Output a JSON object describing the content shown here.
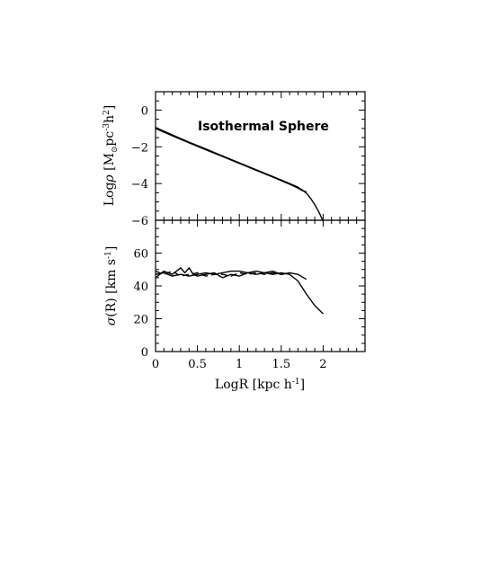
{
  "chart_data": [
    {
      "type": "line",
      "panel": "top",
      "annotation": "Isothermal Sphere",
      "ylabel_parts": {
        "pre": "Log",
        "rho": "ρ",
        "bracket_open": " [M",
        "sun": "⊙",
        "pc": "pc",
        "pc_exp": "-3",
        "h": "h",
        "h_exp": "2",
        "bracket_close": "]"
      },
      "xlim": [
        0,
        2.5
      ],
      "ylim": [
        -6,
        1
      ],
      "yticks": [
        0,
        -2,
        -4,
        -6
      ],
      "ytick_labels": [
        "0",
        "−2",
        "−4",
        "−6"
      ],
      "series": [
        {
          "x": [
            0,
            0.2,
            0.4,
            0.6,
            0.8,
            1.0,
            1.2,
            1.4,
            1.6,
            1.7,
            1.75,
            1.8,
            1.85,
            1.9,
            1.95,
            2.0
          ],
          "y": [
            -0.95,
            -1.35,
            -1.75,
            -2.12,
            -2.5,
            -2.87,
            -3.25,
            -3.62,
            -4.0,
            -4.2,
            -4.35,
            -4.52,
            -4.8,
            -5.15,
            -5.55,
            -6.05
          ]
        },
        {
          "x": [
            0,
            0.2,
            0.4,
            0.6,
            0.8,
            1.0,
            1.2,
            1.4,
            1.6,
            1.7,
            1.75,
            1.8
          ],
          "y": [
            -1.0,
            -1.4,
            -1.78,
            -2.16,
            -2.53,
            -2.9,
            -3.28,
            -3.65,
            -4.03,
            -4.25,
            -4.38,
            -4.45
          ]
        }
      ]
    },
    {
      "type": "line",
      "panel": "bottom",
      "ylabel_parts": {
        "sigma": "σ",
        "r": "(R) [km s",
        "exp": "-1",
        "close": "]"
      },
      "xlabel_parts": {
        "pre": "LogR [kpc h",
        "exp": "-1",
        "close": "]"
      },
      "xlim": [
        0,
        2.5
      ],
      "ylim": [
        0,
        80
      ],
      "xticks": [
        0,
        0.5,
        1,
        1.5,
        2
      ],
      "xtick_labels": [
        "0",
        "0.5",
        "1",
        "1.5",
        "2"
      ],
      "yticks": [
        0,
        20,
        40,
        60
      ],
      "ytick_labels": [
        "0",
        "20",
        "40",
        "60"
      ],
      "series": [
        {
          "x": [
            0,
            0.1,
            0.2,
            0.3,
            0.4,
            0.5,
            0.6,
            0.7,
            0.8,
            0.9,
            1.0,
            1.1,
            1.2,
            1.3,
            1.4,
            1.5,
            1.6,
            1.7,
            1.8,
            1.9,
            2.0
          ],
          "y": [
            47,
            48,
            46,
            47,
            46,
            47,
            48,
            47,
            48,
            49,
            49,
            48,
            49,
            48,
            47,
            48,
            47,
            43,
            35,
            28,
            23
          ]
        },
        {
          "x": [
            0,
            0.1,
            0.2,
            0.3,
            0.35,
            0.4,
            0.45,
            0.5,
            0.6,
            0.7,
            0.8,
            0.9,
            1.0,
            1.1,
            1.2,
            1.3,
            1.4,
            1.5,
            1.6,
            1.7,
            1.8
          ],
          "y": [
            45,
            49,
            47,
            51,
            48,
            51,
            47,
            46,
            47,
            48,
            45,
            47,
            46,
            48,
            47,
            48,
            49,
            47,
            48,
            47,
            44
          ]
        },
        {
          "x": [
            0,
            0.1,
            0.2,
            0.3,
            0.4,
            0.5,
            0.6,
            0.7,
            0.8,
            0.9,
            1.0,
            1.1,
            1.2,
            1.3,
            1.4,
            1.5,
            1.6
          ],
          "y": [
            49,
            47,
            49,
            46,
            47,
            48,
            46,
            47,
            47,
            46,
            48,
            47,
            48,
            47,
            48,
            47,
            48
          ]
        }
      ]
    }
  ]
}
